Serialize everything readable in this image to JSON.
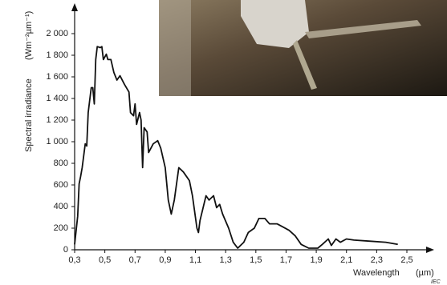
{
  "chart_data": {
    "type": "line",
    "y_label": "Spectral irradiance",
    "y_unit": "(Wm⁻²µm⁻¹)",
    "x_label": "Wavelength",
    "x_unit": "(µm)",
    "footnote": "IEC",
    "grid": false,
    "xlim": [
      0.3,
      2.5
    ],
    "ylim": [
      0,
      2000
    ],
    "xticks": [
      {
        "value": 0.3,
        "label": "0,3"
      },
      {
        "value": 0.5,
        "label": "0,5"
      },
      {
        "value": 0.7,
        "label": "0,7"
      },
      {
        "value": 0.9,
        "label": "0,9"
      },
      {
        "value": 1.1,
        "label": "1,1"
      },
      {
        "value": 1.3,
        "label": "1,3"
      },
      {
        "value": 1.5,
        "label": "1,5"
      },
      {
        "value": 1.7,
        "label": "1,7"
      },
      {
        "value": 1.9,
        "label": "1,9"
      },
      {
        "value": 2.1,
        "label": "2,1"
      },
      {
        "value": 2.3,
        "label": "2,3"
      },
      {
        "value": 2.5,
        "label": "2,5"
      }
    ],
    "yticks": [
      0,
      200,
      400,
      600,
      800,
      {
        "value": 1000,
        "label": "1 000"
      },
      {
        "value": 1200,
        "label": "1 200"
      },
      {
        "value": 1400,
        "label": "1 400"
      },
      {
        "value": 1600,
        "label": "1 600"
      },
      {
        "value": 1800,
        "label": "1 800"
      },
      {
        "value": 2000,
        "label": "2 000"
      }
    ],
    "series": [
      {
        "color": "#111111",
        "x": [
          0.3,
          0.32,
          0.33,
          0.34,
          0.35,
          0.37,
          0.38,
          0.39,
          0.41,
          0.42,
          0.43,
          0.44,
          0.45,
          0.47,
          0.48,
          0.49,
          0.51,
          0.52,
          0.54,
          0.56,
          0.58,
          0.6,
          0.63,
          0.66,
          0.67,
          0.69,
          0.7,
          0.71,
          0.73,
          0.74,
          0.75,
          0.76,
          0.78,
          0.79,
          0.82,
          0.85,
          0.87,
          0.9,
          0.92,
          0.94,
          0.96,
          0.99,
          1.02,
          1.06,
          1.08,
          1.11,
          1.12,
          1.13,
          1.17,
          1.19,
          1.22,
          1.24,
          1.26,
          1.28,
          1.32,
          1.35,
          1.38,
          1.42,
          1.45,
          1.49,
          1.52,
          1.56,
          1.59,
          1.64,
          1.68,
          1.72,
          1.76,
          1.8,
          1.85,
          1.91,
          1.94,
          1.98,
          2.0,
          2.03,
          2.06,
          2.1,
          2.15,
          2.25,
          2.36,
          2.44
        ],
        "values": [
          50,
          310,
          610,
          680,
          760,
          980,
          960,
          1270,
          1500,
          1500,
          1350,
          1760,
          1880,
          1870,
          1880,
          1760,
          1810,
          1760,
          1760,
          1640,
          1570,
          1610,
          1530,
          1460,
          1270,
          1240,
          1350,
          1160,
          1270,
          1200,
          760,
          1130,
          1090,
          900,
          980,
          1010,
          940,
          760,
          460,
          330,
          460,
          760,
          720,
          640,
          500,
          200,
          160,
          270,
          500,
          460,
          500,
          390,
          420,
          330,
          200,
          70,
          15,
          70,
          160,
          200,
          290,
          290,
          240,
          240,
          210,
          180,
          130,
          50,
          15,
          15,
          50,
          100,
          40,
          100,
          70,
          100,
          90,
          80,
          70,
          50
        ]
      }
    ]
  }
}
